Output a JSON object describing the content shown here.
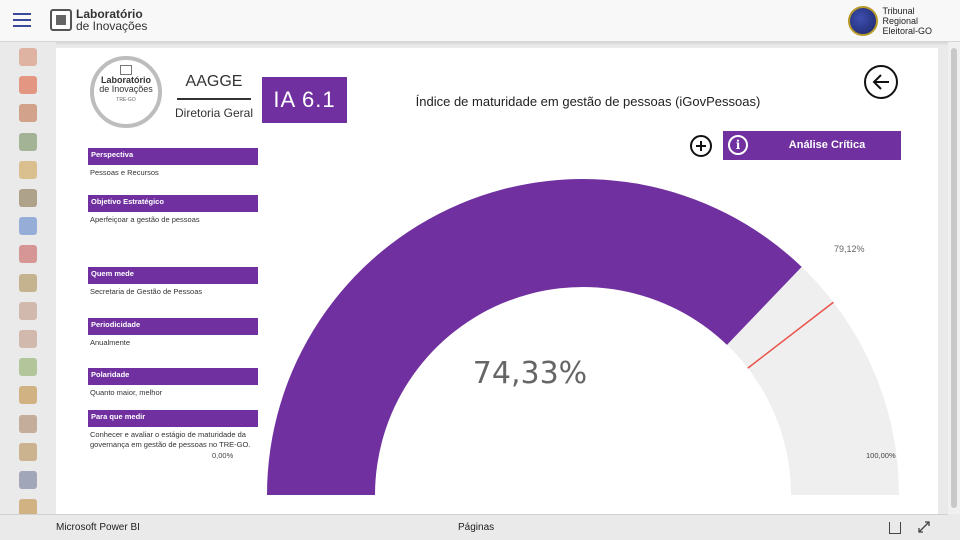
{
  "topbar": {
    "brand_line1": "Laboratório",
    "brand_line2": "de Inovações",
    "tre_line1": "Tribunal",
    "tre_line2": "Regional",
    "tre_line3": "Eleitoral-GO"
  },
  "nav_icons": [
    "handshake-icon",
    "gear-people-icon",
    "person-icon",
    "computer-user-icon",
    "links-icon",
    "search-people-icon",
    "checklist-icon",
    "prohibited-icon",
    "document-icon",
    "pj-icon",
    "pj-icon-2",
    "scales-icon",
    "money-bag-icon",
    "certificate-icon",
    "calendar-icon",
    "people-group-icon",
    "handcart-icon"
  ],
  "report": {
    "logo_line1": "Laboratório",
    "logo_line2": "de Inovações",
    "logo_line3": "TRE-GO",
    "unit": "AAGGE",
    "directorate": "Diretoria Geral",
    "indicator_code": "IA 6.1",
    "title": "Índice de maturidade em gestão de pessoas (iGovPessoas)",
    "critica_label": "Análise Crítica",
    "critica_icon": "i",
    "info": [
      {
        "label": "Perspectiva",
        "value": "Pessoas e Recursos"
      },
      {
        "label": "Objetivo Estratégico",
        "value": "Aperfeiçoar a gestão de pessoas"
      },
      {
        "label": "Quem mede",
        "value": "Secretaria de Gestão de Pessoas"
      },
      {
        "label": "Periodicidade",
        "value": "Anualmente"
      },
      {
        "label": "Polaridade",
        "value": "Quanto maior, melhor"
      },
      {
        "label": "Para que medir",
        "value": "Conhecer e avaliar o estágio de maturidade da governança em gestão de pessoas no TRE-GO."
      }
    ]
  },
  "chart_data": {
    "type": "gauge",
    "value": 74.33,
    "value_label": "74,33%",
    "min": 0,
    "max": 100,
    "min_label": "0,00%",
    "max_label": "100,00%",
    "target": 79.12,
    "target_label": "79,12%",
    "fill_color": "#7030a0",
    "track_color": "#f0efef",
    "target_color": "#e8534a"
  },
  "bottombar": {
    "app_name": "Microsoft Power BI",
    "pages_label": "Páginas"
  }
}
